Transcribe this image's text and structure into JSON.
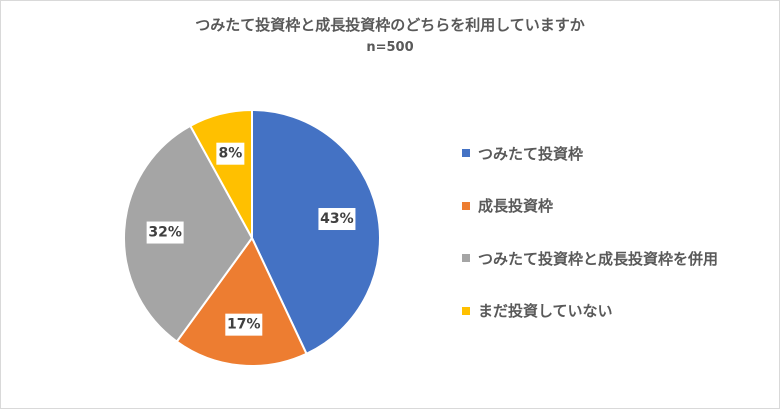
{
  "chart_data": {
    "type": "pie",
    "title": "つみたて投資枠と成長投資枠のどちらを利用していますか",
    "subtitle": "n=500",
    "slices": [
      {
        "label": "つみたて投資枠",
        "value": 43,
        "data_label": "43%",
        "color": "#4472C4"
      },
      {
        "label": "成長投資枠",
        "value": 17,
        "data_label": "17%",
        "color": "#ED7D31"
      },
      {
        "label": "つみたて投資枠と成長投資枠を併用",
        "value": 32,
        "data_label": "32%",
        "color": "#A5A5A5"
      },
      {
        "label": "まだ投資していない",
        "value": 8,
        "data_label": "8%",
        "color": "#FFC000"
      }
    ],
    "legend_position": "right"
  }
}
